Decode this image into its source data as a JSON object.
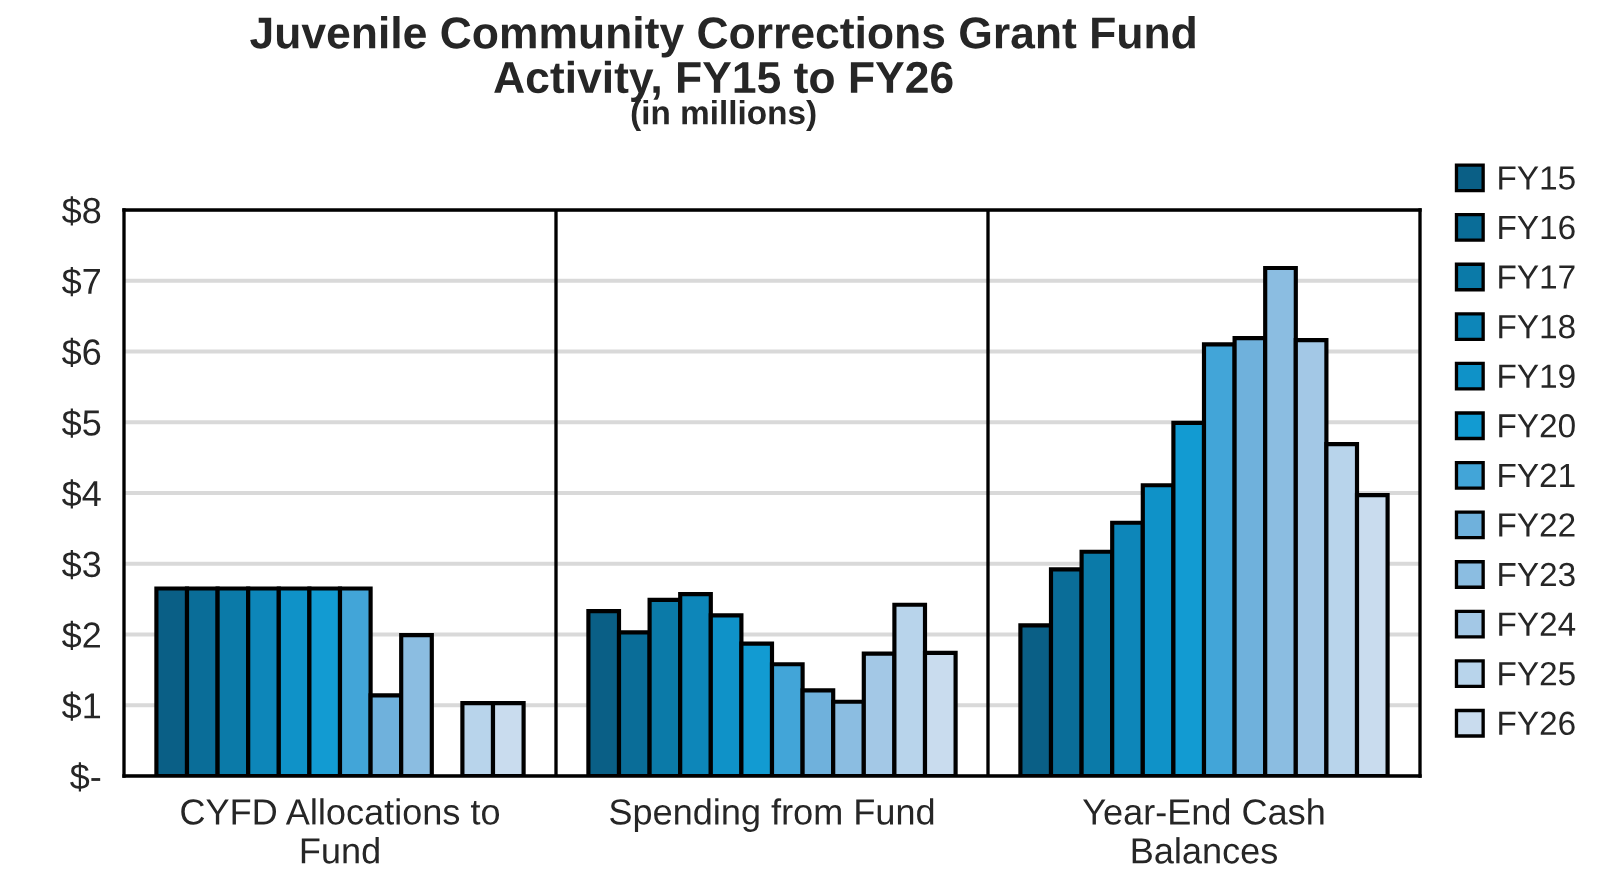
{
  "chart_data": {
    "type": "bar",
    "title": "Juvenile Community Corrections Grant Fund\nActivity, FY15 to FY26",
    "subtitle": "(in millions)",
    "categories": [
      "CYFD Allocations to\nFund",
      "Spending from Fund",
      "Year-End Cash\nBalances"
    ],
    "series": [
      {
        "name": "FY15",
        "color": "#0a5f86",
        "values": [
          2.65,
          2.33,
          2.13
        ]
      },
      {
        "name": "FY16",
        "color": "#0a6d98",
        "values": [
          2.65,
          2.03,
          2.92
        ]
      },
      {
        "name": "FY17",
        "color": "#0b7aa8",
        "values": [
          2.65,
          2.49,
          3.17
        ]
      },
      {
        "name": "FY18",
        "color": "#0d86b9",
        "values": [
          2.65,
          2.57,
          3.58
        ]
      },
      {
        "name": "FY19",
        "color": "#0f92c8",
        "values": [
          2.65,
          2.27,
          4.11
        ]
      },
      {
        "name": "FY20",
        "color": "#129bd2",
        "values": [
          2.65,
          1.87,
          4.99
        ]
      },
      {
        "name": "FY21",
        "color": "#42a5d8",
        "values": [
          2.65,
          1.58,
          6.1
        ]
      },
      {
        "name": "FY22",
        "color": "#6fb1dc",
        "values": [
          1.14,
          1.21,
          6.19
        ]
      },
      {
        "name": "FY23",
        "color": "#8bbde1",
        "values": [
          1.99,
          1.05,
          7.18
        ]
      },
      {
        "name": "FY24",
        "color": "#a3c8e6",
        "values": [
          null,
          1.73,
          6.16
        ]
      },
      {
        "name": "FY25",
        "color": "#b8d4eb",
        "values": [
          1.03,
          2.42,
          4.69
        ]
      },
      {
        "name": "FY26",
        "color": "#c9dcee",
        "values": [
          1.03,
          1.74,
          3.97
        ]
      }
    ],
    "ylim": [
      0,
      8
    ],
    "yticks": [
      {
        "value": 0,
        "label": "$-"
      },
      {
        "value": 1,
        "label": "$1"
      },
      {
        "value": 2,
        "label": "$2"
      },
      {
        "value": 3,
        "label": "$3"
      },
      {
        "value": 4,
        "label": "$4"
      },
      {
        "value": 5,
        "label": "$5"
      },
      {
        "value": 6,
        "label": "$6"
      },
      {
        "value": 7,
        "label": "$7"
      },
      {
        "value": 8,
        "label": "$8"
      }
    ],
    "grid": "y",
    "legend": "right"
  }
}
